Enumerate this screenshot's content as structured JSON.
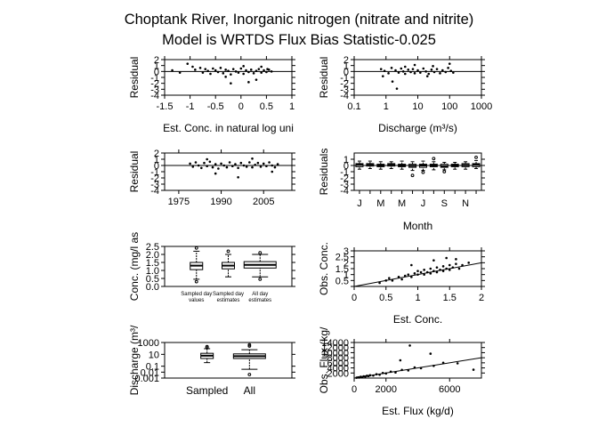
{
  "figure": {
    "title_line1": "Choptank River, Inorganic nitrogen (nitrate and nitrite)",
    "title_line2": "Model is WRTDS Flux Bias Statistic-0.025"
  },
  "chart_data": [
    {
      "id": "p1",
      "type": "scatter",
      "xlabel": "Est. Conc. in natural log uni",
      "ylabel": "Residual",
      "xlim": [
        -1.5,
        1.0
      ],
      "ylim": [
        -4,
        2
      ],
      "xticks": [
        -1.5,
        -1,
        -0.5,
        0,
        0.5,
        1
      ],
      "xtick_labels": [
        "-1.5",
        "-1",
        "-0.5",
        "0",
        "0.5",
        "1"
      ],
      "yticks": [
        -4,
        -3,
        -2,
        -1,
        0,
        1,
        2
      ],
      "ytick_labels": [
        "-4",
        "-3",
        "-2",
        "-1",
        "0",
        "1",
        "2"
      ],
      "hline": 0,
      "points": [
        [
          -1.05,
          1.3
        ],
        [
          -0.95,
          0.8
        ],
        [
          -0.9,
          0.3
        ],
        [
          -0.8,
          0.6
        ],
        [
          -0.75,
          -0.2
        ],
        [
          -0.7,
          0.4
        ],
        [
          -0.65,
          0.1
        ],
        [
          -0.6,
          -0.4
        ],
        [
          -0.55,
          0.5
        ],
        [
          -0.5,
          0.2
        ],
        [
          -0.45,
          -0.1
        ],
        [
          -0.4,
          0.6
        ],
        [
          -0.35,
          -0.3
        ],
        [
          -0.3,
          0.3
        ],
        [
          -0.25,
          0.1
        ],
        [
          -0.2,
          -0.5
        ],
        [
          -0.15,
          0.4
        ],
        [
          -0.1,
          0.0
        ],
        [
          -0.05,
          -0.2
        ],
        [
          0.0,
          0.5
        ],
        [
          0.05,
          -0.4
        ],
        [
          0.1,
          0.2
        ],
        [
          0.15,
          -0.1
        ],
        [
          0.2,
          0.3
        ],
        [
          0.25,
          -0.3
        ],
        [
          0.3,
          0.1
        ],
        [
          0.35,
          0.4
        ],
        [
          0.4,
          -0.2
        ],
        [
          0.45,
          0.2
        ],
        [
          0.5,
          -0.1
        ],
        [
          0.55,
          0.3
        ],
        [
          0.6,
          0.0
        ],
        [
          0.15,
          -1.8
        ],
        [
          0.3,
          -1.4
        ],
        [
          -0.2,
          -2.0
        ],
        [
          0.05,
          0.9
        ],
        [
          -0.3,
          -0.9
        ],
        [
          0.4,
          0.8
        ],
        [
          0.52,
          0.4
        ],
        [
          -1.35,
          0.2
        ],
        [
          -1.2,
          -0.2
        ]
      ]
    },
    {
      "id": "p2",
      "type": "scatter",
      "xlabel": "Discharge (m³/s)",
      "ylabel": "Residual",
      "xscale": "log",
      "xlim": [
        0.1,
        1000
      ],
      "ylim": [
        -4,
        2
      ],
      "xticks": [
        0.1,
        1,
        10,
        100,
        1000
      ],
      "xtick_labels": [
        "0.1",
        "1",
        "10",
        "100",
        "1000"
      ],
      "yticks": [
        -4,
        -3,
        -2,
        -1,
        0,
        1,
        2
      ],
      "ytick_labels": [
        "-4",
        "-3",
        "-2",
        "-1",
        "0",
        "1",
        "2"
      ],
      "hline": 0,
      "points": [
        [
          0.7,
          0.4
        ],
        [
          0.9,
          0.1
        ],
        [
          1.2,
          -0.3
        ],
        [
          1.5,
          0.6
        ],
        [
          2,
          0.2
        ],
        [
          2.5,
          -0.2
        ],
        [
          3,
          0.5
        ],
        [
          3.5,
          0.0
        ],
        [
          4,
          -0.4
        ],
        [
          5,
          0.3
        ],
        [
          6,
          -0.1
        ],
        [
          7,
          0.4
        ],
        [
          8,
          -0.3
        ],
        [
          10,
          0.2
        ],
        [
          12,
          -0.2
        ],
        [
          15,
          0.5
        ],
        [
          18,
          0.0
        ],
        [
          22,
          -0.4
        ],
        [
          27,
          0.3
        ],
        [
          33,
          -0.1
        ],
        [
          40,
          0.4
        ],
        [
          50,
          -0.3
        ],
        [
          60,
          0.2
        ],
        [
          75,
          -0.1
        ],
        [
          90,
          0.6
        ],
        [
          110,
          0.1
        ],
        [
          130,
          -0.2
        ],
        [
          2.2,
          -2.9
        ],
        [
          1.6,
          -1.7
        ],
        [
          8,
          1.1
        ],
        [
          30,
          0.9
        ],
        [
          0.8,
          -0.8
        ],
        [
          100,
          1.3
        ],
        [
          4,
          0.8
        ],
        [
          20,
          -0.8
        ]
      ]
    },
    {
      "id": "p3",
      "type": "scatter",
      "ylabel": "Residual",
      "xlim": [
        1970,
        2015
      ],
      "ylim": [
        -4,
        2
      ],
      "xticks": [
        1975,
        1990,
        2005
      ],
      "xtick_labels": [
        "1975",
        "1990",
        "2005"
      ],
      "yticks": [
        -4,
        -3,
        -2,
        -1,
        0,
        1,
        2
      ],
      "ytick_labels": [
        "-4",
        "-3",
        "-2",
        "-1",
        "0",
        "1",
        "2"
      ],
      "hline": 0,
      "points": [
        [
          1979,
          0.3
        ],
        [
          1980,
          -0.2
        ],
        [
          1981,
          0.5
        ],
        [
          1982,
          0.0
        ],
        [
          1983,
          -0.4
        ],
        [
          1984,
          0.4
        ],
        [
          1985,
          -0.1
        ],
        [
          1986,
          0.6
        ],
        [
          1987,
          -0.3
        ],
        [
          1988,
          0.2
        ],
        [
          1989,
          -0.5
        ],
        [
          1990,
          0.3
        ],
        [
          1991,
          0.0
        ],
        [
          1992,
          -0.3
        ],
        [
          1993,
          0.5
        ],
        [
          1994,
          -0.1
        ],
        [
          1995,
          0.2
        ],
        [
          1996,
          -0.4
        ],
        [
          1997,
          0.4
        ],
        [
          1998,
          0.0
        ],
        [
          1999,
          -0.2
        ],
        [
          2000,
          0.5
        ],
        [
          2001,
          -0.3
        ],
        [
          2002,
          0.1
        ],
        [
          2003,
          0.4
        ],
        [
          2004,
          -0.2
        ],
        [
          2005,
          0.3
        ],
        [
          2006,
          -0.1
        ],
        [
          2007,
          0.5
        ],
        [
          2008,
          0.0
        ],
        [
          2009,
          -0.3
        ],
        [
          2010,
          0.2
        ],
        [
          1996,
          -1.9
        ],
        [
          1988,
          -1.3
        ],
        [
          2001,
          1.1
        ],
        [
          1985,
          1.0
        ],
        [
          2008,
          -1.0
        ]
      ]
    },
    {
      "id": "p4",
      "type": "boxplot",
      "xlabel": "Month",
      "ylabel": "Residuals",
      "ylim": [
        -4,
        2
      ],
      "yticks": [
        -4,
        -3,
        -2,
        -1,
        0,
        1
      ],
      "ytick_labels": [
        "-4",
        "-3",
        "-2",
        "-1",
        "0",
        "1"
      ],
      "hline": 0,
      "xtick_labels": [
        "J",
        "M",
        "M",
        "J",
        "S",
        "N"
      ],
      "xtick_months": [
        1,
        3,
        5,
        7,
        9,
        11
      ],
      "boxes": [
        {
          "month": 1,
          "q1": -0.2,
          "med": 0.1,
          "q3": 0.3,
          "lo": -0.6,
          "hi": 0.7
        },
        {
          "month": 2,
          "q1": -0.1,
          "med": 0.1,
          "q3": 0.3,
          "lo": -0.5,
          "hi": 0.7
        },
        {
          "month": 3,
          "q1": -0.2,
          "med": 0.0,
          "q3": 0.2,
          "lo": -0.6,
          "hi": 0.6
        },
        {
          "month": 4,
          "q1": -0.1,
          "med": 0.1,
          "q3": 0.3,
          "lo": -0.5,
          "hi": 0.6
        },
        {
          "month": 5,
          "q1": -0.2,
          "med": 0.0,
          "q3": 0.2,
          "lo": -0.6,
          "hi": 0.7
        },
        {
          "month": 6,
          "q1": -0.3,
          "med": -0.05,
          "q3": 0.2,
          "lo": -0.8,
          "hi": 0.6
        },
        {
          "month": 7,
          "q1": -0.3,
          "med": 0.0,
          "q3": 0.2,
          "lo": -0.8,
          "hi": 0.7
        },
        {
          "month": 8,
          "q1": -0.2,
          "med": 0.0,
          "q3": 0.2,
          "lo": -0.7,
          "hi": 0.6
        },
        {
          "month": 9,
          "q1": -0.3,
          "med": -0.1,
          "q3": 0.2,
          "lo": -0.7,
          "hi": 0.5
        },
        {
          "month": 10,
          "q1": -0.2,
          "med": 0.0,
          "q3": 0.2,
          "lo": -0.6,
          "hi": 0.5
        },
        {
          "month": 11,
          "q1": -0.2,
          "med": 0.05,
          "q3": 0.3,
          "lo": -0.6,
          "hi": 0.6
        },
        {
          "month": 12,
          "q1": -0.2,
          "med": 0.1,
          "q3": 0.3,
          "lo": -0.5,
          "hi": 0.8
        }
      ],
      "outliers": [
        [
          6,
          -1.6
        ],
        [
          7,
          -1.1
        ],
        [
          8,
          1.1
        ],
        [
          12,
          1.3
        ],
        [
          9,
          -1.0
        ]
      ]
    },
    {
      "id": "p5",
      "type": "boxplot",
      "ylabel": "Conc. (mg/l as",
      "ylim": [
        0,
        2.5
      ],
      "yticks": [
        0,
        0.5,
        1,
        1.5,
        2,
        2.5
      ],
      "ytick_labels": [
        "0.0",
        "0.5",
        "1.0",
        "1.5",
        "2.0",
        "2.5"
      ],
      "groups": [
        {
          "label1": "Sampled day",
          "label2": "values",
          "q1": 1.05,
          "med": 1.3,
          "q3": 1.5,
          "lo": 0.45,
          "hi": 2.2
        },
        {
          "label1": "Sampled day",
          "label2": "estimates",
          "q1": 1.1,
          "med": 1.3,
          "q3": 1.5,
          "lo": 0.6,
          "hi": 2.0
        },
        {
          "label1": "All day",
          "label2": "estimates",
          "q1": 1.15,
          "med": 1.35,
          "q3": 1.55,
          "lo": 0.6,
          "hi": 2.0,
          "wide": true
        }
      ],
      "outliers": [
        [
          0,
          2.4
        ],
        [
          0,
          0.3
        ],
        [
          1,
          2.2
        ],
        [
          2,
          2.1
        ],
        [
          2,
          0.45
        ]
      ]
    },
    {
      "id": "p6",
      "type": "scatter",
      "xlabel": "Est. Conc.",
      "ylabel": "Obs. Conc.",
      "xlim": [
        0,
        2
      ],
      "ylim": [
        0,
        3
      ],
      "xticks": [
        0,
        0.5,
        1,
        1.5,
        2
      ],
      "xtick_labels": [
        "0",
        "0.5",
        "1",
        "1.5",
        "2"
      ],
      "yticks": [
        0,
        0.5,
        1,
        1.5,
        2,
        2.5,
        3
      ],
      "ytick_labels": [
        "",
        "0.5",
        "1",
        "1.5",
        "2",
        "2.5",
        "3"
      ],
      "line": [
        [
          0,
          0
        ],
        [
          2,
          2
        ]
      ],
      "points": [
        [
          0.4,
          0.3
        ],
        [
          0.5,
          0.5
        ],
        [
          0.55,
          0.7
        ],
        [
          0.6,
          0.5
        ],
        [
          0.7,
          0.8
        ],
        [
          0.75,
          0.6
        ],
        [
          0.8,
          0.9
        ],
        [
          0.85,
          1.0
        ],
        [
          0.9,
          0.8
        ],
        [
          0.95,
          1.1
        ],
        [
          1.0,
          1.0
        ],
        [
          1.0,
          1.3
        ],
        [
          1.05,
          1.2
        ],
        [
          1.1,
          1.0
        ],
        [
          1.1,
          1.4
        ],
        [
          1.15,
          1.2
        ],
        [
          1.2,
          1.5
        ],
        [
          1.2,
          1.1
        ],
        [
          1.25,
          1.3
        ],
        [
          1.3,
          1.6
        ],
        [
          1.3,
          1.2
        ],
        [
          1.35,
          1.4
        ],
        [
          1.4,
          1.7
        ],
        [
          1.4,
          1.3
        ],
        [
          1.45,
          1.5
        ],
        [
          1.5,
          1.8
        ],
        [
          1.5,
          1.4
        ],
        [
          1.55,
          1.6
        ],
        [
          1.6,
          1.9
        ],
        [
          1.65,
          1.5
        ],
        [
          1.7,
          1.8
        ],
        [
          1.8,
          2.0
        ],
        [
          1.25,
          2.2
        ],
        [
          1.45,
          2.4
        ],
        [
          0.9,
          1.8
        ],
        [
          1.6,
          2.3
        ]
      ]
    },
    {
      "id": "p7",
      "type": "boxplot",
      "ylabel": "Discharge (m³/",
      "yscale": "log",
      "ylim": [
        0.001,
        1000
      ],
      "yticks": [
        0.001,
        0.01,
        0.1,
        10,
        1000
      ],
      "ytick_labels": [
        "0.001",
        "0.01",
        "0.1",
        "10",
        "1000"
      ],
      "groups": [
        {
          "label1": "Sampled",
          "q1": 2,
          "med": 6,
          "q3": 15,
          "lo": 0.4,
          "hi": 90
        },
        {
          "label1": "All",
          "q1": 2,
          "med": 5,
          "q3": 12,
          "lo": 0.03,
          "hi": 60,
          "wide": true
        }
      ],
      "outliers": [
        [
          0,
          200
        ],
        [
          0,
          150
        ],
        [
          1,
          400
        ],
        [
          1,
          250
        ],
        [
          1,
          0.004
        ]
      ]
    },
    {
      "id": "p8",
      "type": "scatter",
      "xlabel": "Est. Flux (kg/d)",
      "ylabel": "Obs. Flux (kg/",
      "xlim": [
        0,
        8000
      ],
      "ylim": [
        0,
        14000
      ],
      "xticks": [
        0,
        2000,
        6000
      ],
      "xtick_labels": [
        "0",
        "2000",
        "6000"
      ],
      "yticks": [
        2000,
        4000,
        6000,
        8000,
        10000,
        12000,
        14000
      ],
      "ytick_labels": [
        "2000",
        "4000",
        "6000",
        "8000",
        "10000",
        "12000",
        "14000"
      ],
      "line": [
        [
          0,
          0
        ],
        [
          8000,
          8000
        ]
      ],
      "points": [
        [
          150,
          150
        ],
        [
          250,
          300
        ],
        [
          300,
          200
        ],
        [
          400,
          500
        ],
        [
          500,
          400
        ],
        [
          600,
          700
        ],
        [
          700,
          600
        ],
        [
          800,
          900
        ],
        [
          900,
          800
        ],
        [
          1000,
          1100
        ],
        [
          1200,
          1000
        ],
        [
          1400,
          1500
        ],
        [
          1600,
          1300
        ],
        [
          1800,
          2000
        ],
        [
          2000,
          1800
        ],
        [
          2300,
          2500
        ],
        [
          2600,
          2200
        ],
        [
          3000,
          3200
        ],
        [
          3400,
          3000
        ],
        [
          3800,
          4200
        ],
        [
          4200,
          3900
        ],
        [
          5000,
          4800
        ],
        [
          5600,
          6000
        ],
        [
          6500,
          5800
        ],
        [
          3500,
          12800
        ],
        [
          4800,
          9600
        ],
        [
          2900,
          7000
        ],
        [
          7500,
          3300
        ]
      ]
    }
  ]
}
